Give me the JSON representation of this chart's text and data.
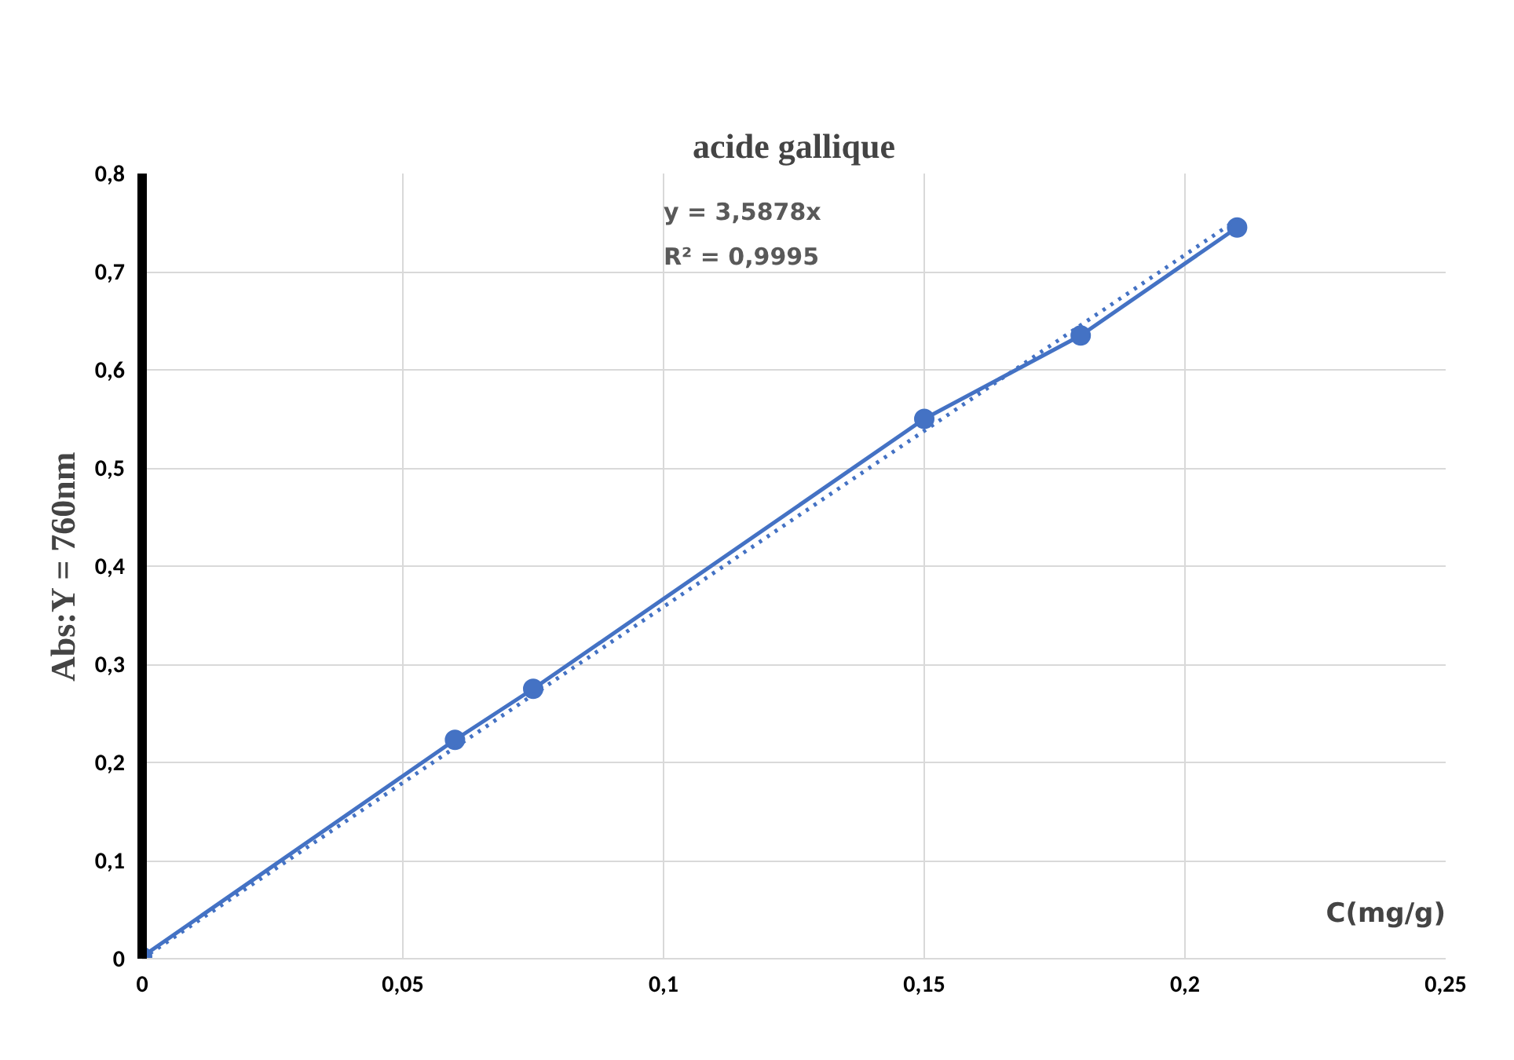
{
  "chart_data": {
    "type": "line",
    "title": "acide gallique",
    "xlabel": "C(mg/g)",
    "ylabel": "Abs:Y = 760nm",
    "x": [
      0,
      0.06,
      0.075,
      0.15,
      0.18,
      0.21
    ],
    "series": [
      {
        "color": "#4472c4",
        "values": [
          0.002,
          0.223,
          0.275,
          0.55,
          0.635,
          0.745
        ],
        "marker": "circle",
        "line_style": "solid"
      },
      {
        "type": "line",
        "color": "#4472c4",
        "x": [
          0,
          0.21
        ],
        "values": [
          0,
          0.753
        ],
        "marker": "none",
        "line_style": "dotted"
      }
    ],
    "annotations": [
      "y = 3,5878x",
      "R² = 0,9995"
    ],
    "xlim": [
      0,
      0.25
    ],
    "ylim": [
      0,
      0.8
    ],
    "xticks": [
      0,
      {
        "value": 0.05,
        "label": "0,05"
      },
      {
        "value": 0.1,
        "label": "0,1"
      },
      {
        "value": 0.15,
        "label": "0,15"
      },
      {
        "value": 0.2,
        "label": "0,2"
      },
      {
        "value": 0.25,
        "label": "0,25"
      }
    ],
    "yticks": [
      0,
      {
        "value": 0.1,
        "label": "0,1"
      },
      {
        "value": 0.2,
        "label": "0,2"
      },
      {
        "value": 0.3,
        "label": "0,3"
      },
      {
        "value": 0.4,
        "label": "0,4"
      },
      {
        "value": 0.5,
        "label": "0,5"
      },
      {
        "value": 0.6,
        "label": "0,6"
      },
      {
        "value": 0.7,
        "label": "0,7"
      },
      {
        "value": 0.8,
        "label": "0,8"
      }
    ],
    "grid": true
  }
}
